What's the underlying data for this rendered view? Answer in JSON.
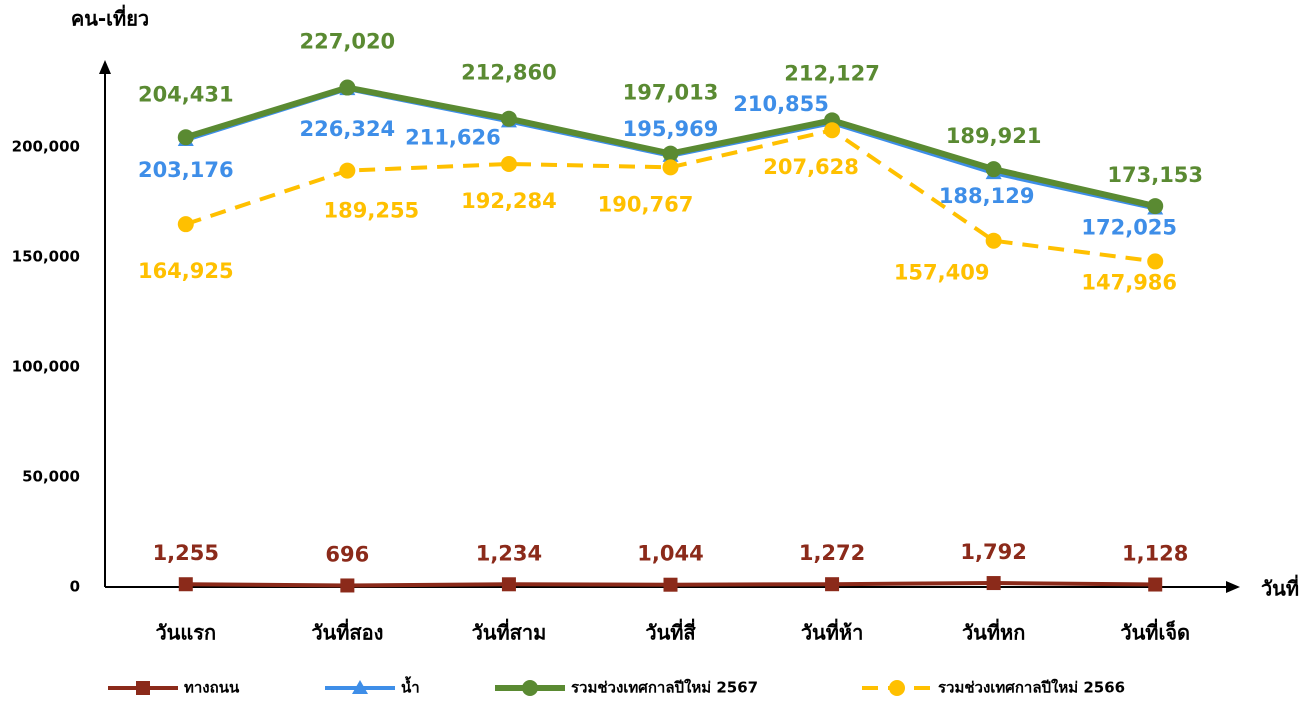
{
  "chart_data": {
    "type": "line",
    "y_axis_label": "คน-เที่ยว",
    "x_axis_label": "วันที่",
    "categories": [
      "วันแรก",
      "วันที่สอง",
      "วันที่สาม",
      "วันที่สี่",
      "วันที่ห้า",
      "วันที่หก",
      "วันที่เจ็ด"
    ],
    "ylim": [
      0,
      240000
    ],
    "yticks": [
      {
        "value": 0,
        "label": "0"
      },
      {
        "value": 50000,
        "label": "50,000"
      },
      {
        "value": 100000,
        "label": "100,000"
      },
      {
        "value": 150000,
        "label": "150,000"
      },
      {
        "value": 200000,
        "label": "200,000"
      }
    ],
    "grid": false,
    "legend": "bottom",
    "series": [
      {
        "name": "ทางถนน",
        "color": "#8b2a1a",
        "marker": "square",
        "dashed": false,
        "values": [
          1255,
          696,
          1234,
          1044,
          1272,
          1792,
          1128
        ],
        "value_labels": [
          "1,255",
          "696",
          "1,234",
          "1,044",
          "1,272",
          "1,792",
          "1,128"
        ]
      },
      {
        "name": "น้ำ",
        "color": "#3e8ee8",
        "marker": "triangle",
        "dashed": false,
        "values": [
          203176,
          226324,
          211626,
          195969,
          210855,
          188129,
          172025
        ],
        "value_labels": [
          "203,176",
          "226,324",
          "211,626",
          "195,969",
          "210,855",
          "188,129",
          "172,025"
        ]
      },
      {
        "name": "รวมช่วงเทศกาลปีใหม่ 2567",
        "color": "#5a8a32",
        "marker": "circle",
        "dashed": false,
        "values": [
          204431,
          227020,
          212860,
          197013,
          212127,
          189921,
          173153
        ],
        "value_labels": [
          "204,431",
          "227,020",
          "212,860",
          "197,013",
          "212,127",
          "189,921",
          "173,153"
        ]
      },
      {
        "name": "รวมช่วงเทศกาลปีใหม่ 2566",
        "color": "#ffc000",
        "marker": "circle",
        "dashed": true,
        "values": [
          164925,
          189255,
          192284,
          190767,
          207628,
          157409,
          147986
        ],
        "value_labels": [
          "164,925",
          "189,255",
          "192,284",
          "190,767",
          "207,628",
          "157,409",
          "147,986"
        ]
      }
    ]
  }
}
